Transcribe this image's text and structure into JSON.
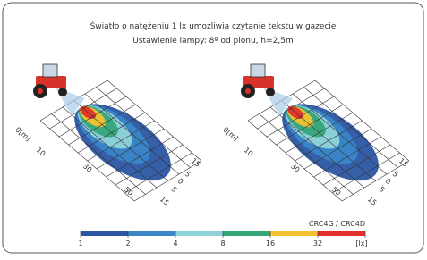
{
  "header": {
    "title": "Światło o natężeniu 1 lx umożliwia czytanie tekstu w gazecie",
    "subtitle": "Ustawienie lampy: 8º od pionu, h=2,5m"
  },
  "plots": [
    {
      "labels": [
        "0[m]",
        "10",
        "30",
        "50",
        "15",
        "5",
        "0",
        "5",
        "15"
      ]
    },
    {
      "labels": [
        "0[m]",
        "10",
        "30",
        "50",
        "15",
        "5",
        "0",
        "5",
        "15"
      ]
    }
  ],
  "legend": {
    "title": "CRC4G / CRC4D",
    "ticks": [
      "1",
      "2",
      "4",
      "8",
      "16",
      "32",
      "[lx]"
    ],
    "colors": [
      "#2a56a4",
      "#3a86c8",
      "#8fd3da",
      "#35a57a",
      "#f2c230",
      "#e2312b"
    ]
  }
}
